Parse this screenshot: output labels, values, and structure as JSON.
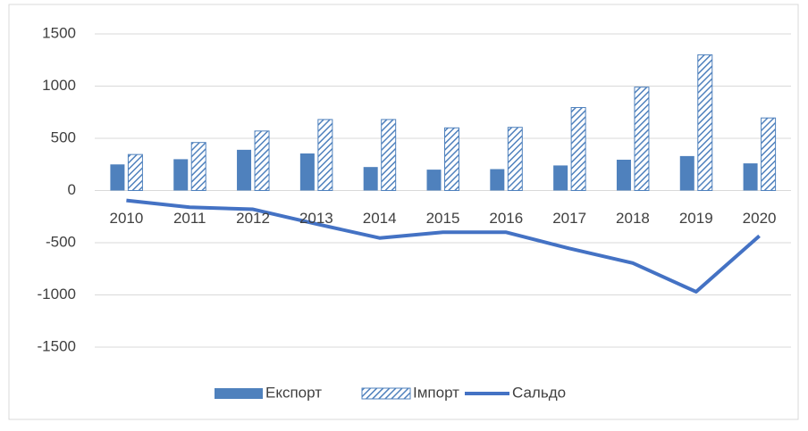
{
  "chart_data": {
    "type": "bar-line",
    "categories": [
      "2010",
      "2011",
      "2012",
      "2013",
      "2014",
      "2015",
      "2016",
      "2017",
      "2018",
      "2019",
      "2020"
    ],
    "series": [
      {
        "name": "Експорт",
        "type": "bar",
        "color": "#4f81bd",
        "values": [
          250,
          300,
          390,
          355,
          225,
          200,
          205,
          240,
          295,
          330,
          260
        ]
      },
      {
        "name": "Імпорт",
        "type": "bar-hatched",
        "color": "#4f81bd",
        "values": [
          345,
          460,
          570,
          680,
          680,
          600,
          605,
          795,
          990,
          1300,
          695
        ]
      },
      {
        "name": "Сальдо",
        "type": "line",
        "color": "#4472c4",
        "values": [
          -95,
          -160,
          -180,
          -320,
          -455,
          -400,
          -400,
          -555,
          -695,
          -970,
          -435
        ]
      }
    ],
    "ylim": [
      -1500,
      1500
    ],
    "yticks": [
      -1500,
      -1000,
      -500,
      0,
      500,
      1000,
      1500
    ],
    "grid": true,
    "legend": "bottom"
  }
}
